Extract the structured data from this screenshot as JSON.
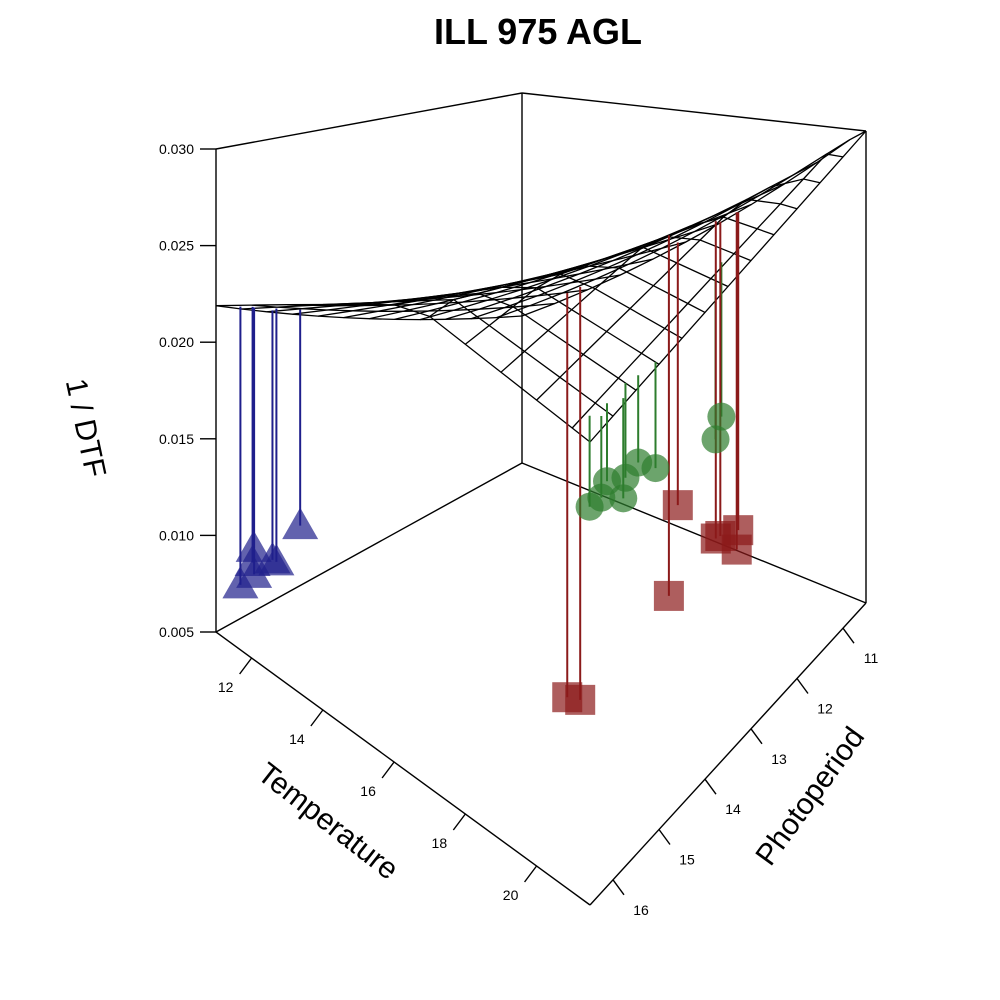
{
  "chart_data": {
    "type": "scatter3d",
    "title": "ILL 975 AGL",
    "xlabel": "Temperature",
    "ylabel": "Photoperiod",
    "zlabel": "1 / DTF",
    "xlim": [
      11,
      21.5
    ],
    "ylim": [
      10.5,
      16.5
    ],
    "zlim": [
      0.005,
      0.03
    ],
    "x_ticks": [
      "12",
      "14",
      "16",
      "18",
      "20"
    ],
    "y_ticks": [
      "11",
      "12",
      "13",
      "14",
      "15",
      "16"
    ],
    "z_ticks": [
      "0.005",
      "0.010",
      "0.015",
      "0.020",
      "0.025",
      "0.030"
    ],
    "grid": true,
    "fitted_surface": {
      "x_breaks": [
        11,
        12,
        13,
        14,
        15,
        16,
        17,
        18,
        19,
        20,
        21,
        21.5
      ],
      "y_breaks": [
        10.5,
        11,
        11.5,
        12,
        12.5,
        13,
        13.5,
        14,
        14.5,
        15,
        15.5,
        16,
        16.5
      ],
      "intercept": -0.0132,
      "slope_temperature": 0.00145,
      "slope_photoperiod": 0.00116
    },
    "series": [
      {
        "color": "#1f1f8c",
        "marker": "triangle",
        "points": [
          {
            "x": 11.2,
            "y": 15.9,
            "z": 0.0088
          },
          {
            "x": 11.5,
            "y": 16.1,
            "z": 0.0081
          },
          {
            "x": 11.4,
            "y": 16.3,
            "z": 0.0077
          },
          {
            "x": 11.6,
            "y": 16.2,
            "z": 0.009
          },
          {
            "x": 11.7,
            "y": 15.8,
            "z": 0.0086
          },
          {
            "x": 11.3,
            "y": 15.6,
            "z": 0.0079
          },
          {
            "x": 11.8,
            "y": 15.4,
            "z": 0.0101
          }
        ]
      },
      {
        "color": "#2e7d2e",
        "marker": "circle",
        "points": [
          {
            "x": 21.2,
            "y": 15.9,
            "z": 0.0258
          },
          {
            "x": 21.3,
            "y": 16.1,
            "z": 0.0256
          },
          {
            "x": 21.1,
            "y": 16.2,
            "z": 0.0251
          },
          {
            "x": 21.4,
            "y": 15.7,
            "z": 0.0246
          },
          {
            "x": 21.2,
            "y": 15.5,
            "z": 0.0249
          },
          {
            "x": 21.3,
            "y": 15.3,
            "z": 0.0253
          },
          {
            "x": 21.4,
            "y": 15.0,
            "z": 0.0243
          },
          {
            "x": 20.9,
            "y": 13.2,
            "z": 0.0217
          },
          {
            "x": 21.0,
            "y": 13.4,
            "z": 0.0211
          }
        ]
      },
      {
        "color": "#8b1a1a",
        "marker": "square",
        "points": [
          {
            "x": 16.2,
            "y": 10.8,
            "z": 0.0073
          },
          {
            "x": 17.2,
            "y": 10.6,
            "z": 0.0058
          },
          {
            "x": 17.6,
            "y": 10.5,
            "z": 0.0062
          },
          {
            "x": 17.7,
            "y": 10.6,
            "z": 0.0054
          },
          {
            "x": 17.5,
            "y": 10.9,
            "z": 0.0066
          },
          {
            "x": 18.1,
            "y": 12.3,
            "z": 0.0072
          },
          {
            "x": 18.6,
            "y": 14.8,
            "z": 0.0081
          },
          {
            "x": 18.7,
            "y": 14.6,
            "z": 0.0076
          }
        ]
      }
    ]
  }
}
